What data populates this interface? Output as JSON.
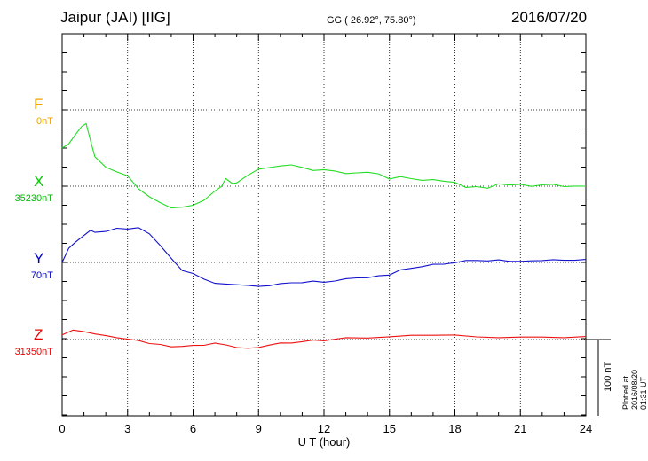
{
  "header": {
    "station": "Jaipur (JAI)  [IIG]",
    "coords": "GG ( 26.92°,  75.80°)",
    "date": "2016/07/20"
  },
  "components": [
    {
      "letter": "F",
      "baseline": "0nT",
      "color": "#f0a000"
    },
    {
      "letter": "X",
      "baseline": "35230nT",
      "color": "#00dd00"
    },
    {
      "letter": "Y",
      "baseline": "70nT",
      "color": "#0000cc"
    },
    {
      "letter": "Z",
      "baseline": "31350nT",
      "color": "#ee0000"
    }
  ],
  "plotted_note": "Plotted at 2016/08/20 01:31  UT",
  "scale_label": "100 nT",
  "chart_data": {
    "type": "line",
    "xlabel": "U T (hour)",
    "xlim": [
      0,
      24
    ],
    "xticks": [
      "0",
      "3",
      "6",
      "9",
      "12",
      "15",
      "18",
      "21",
      "24"
    ],
    "grid": true,
    "series": [
      {
        "name": "F",
        "color": "#f0a000",
        "x": [],
        "y": []
      },
      {
        "name": "X",
        "color": "#22dd22",
        "x": [
          0,
          0.3,
          0.6,
          0.9,
          1.1,
          1.3,
          1.5,
          2,
          2.5,
          3,
          3.5,
          4,
          4.5,
          5,
          5.5,
          6,
          6.5,
          7,
          7.3,
          7.5,
          7.8,
          8,
          8.5,
          9,
          9.5,
          10,
          10.5,
          11,
          11.5,
          12,
          12.5,
          13,
          13.5,
          14,
          14.5,
          15,
          15.5,
          16,
          16.5,
          17,
          17.5,
          18,
          18.5,
          19,
          19.5,
          20,
          20.5,
          21,
          21.5,
          22,
          22.5,
          23,
          23.5,
          24
        ],
        "y": [
          50,
          55,
          68,
          78,
          82,
          60,
          38,
          25,
          19,
          13,
          -3,
          -14,
          -22,
          -28,
          -28,
          -25,
          -18,
          -7,
          0,
          10,
          3,
          5,
          14,
          22,
          25,
          26,
          28,
          25,
          20,
          22,
          20,
          16,
          18,
          18,
          16,
          10,
          12,
          10,
          8,
          8,
          7,
          5,
          -2,
          0,
          -3,
          3,
          2,
          2,
          0,
          2,
          2,
          0,
          0,
          0
        ]
      },
      {
        "name": "Y",
        "color": "#1111cc",
        "x": [
          0,
          0.3,
          0.6,
          1,
          1.3,
          1.5,
          2,
          2.5,
          3,
          3.5,
          4,
          4.5,
          5,
          5.5,
          6,
          6.5,
          7,
          7.5,
          8,
          8.5,
          9,
          9.5,
          10,
          10.5,
          11,
          11.5,
          12,
          12.5,
          13,
          13.5,
          14,
          14.5,
          15,
          15.5,
          16,
          16.5,
          17,
          17.5,
          18,
          18.5,
          19,
          19.5,
          20,
          20.5,
          21,
          21.5,
          22,
          22.5,
          23,
          23.5,
          24
        ],
        "y": [
          0,
          18,
          27,
          35,
          42,
          40,
          40,
          45,
          44,
          45,
          38,
          22,
          5,
          -10,
          -15,
          -22,
          -27,
          -29,
          -29,
          -30,
          -32,
          -30,
          -28,
          -27,
          -26,
          -25,
          -26,
          -24,
          -22,
          -20,
          -20,
          -18,
          -16,
          -10,
          -8,
          -5,
          -3,
          -2,
          0,
          2,
          3,
          2,
          3,
          2,
          1,
          2,
          3,
          3,
          3,
          3,
          4
        ]
      },
      {
        "name": "Z",
        "color": "#ee1111",
        "x": [
          0,
          0.5,
          1,
          1.5,
          2,
          2.5,
          3,
          3.5,
          4,
          4.5,
          5,
          5.5,
          6,
          6.5,
          7,
          7.5,
          8,
          8.5,
          9,
          9.5,
          10,
          10.5,
          11,
          11.5,
          12,
          13,
          14,
          15,
          16,
          17,
          18,
          19,
          20,
          21,
          22,
          23,
          24
        ],
        "y": [
          6,
          12,
          11,
          7,
          5,
          3,
          0,
          -1,
          -5,
          -7,
          -9,
          -9,
          -8,
          -7,
          -5,
          -7,
          -10,
          -12,
          -10,
          -7,
          -5,
          -4,
          -3,
          -1,
          -1,
          2,
          2,
          4,
          5,
          6,
          6,
          3,
          3,
          3,
          3,
          3,
          4
        ]
      }
    ]
  }
}
